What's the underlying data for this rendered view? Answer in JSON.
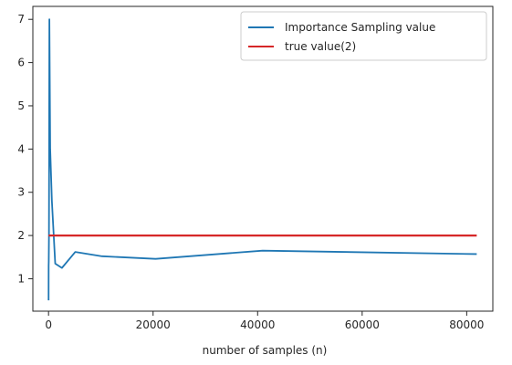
{
  "chart_data": {
    "type": "line",
    "title": "",
    "xlabel": "number of samples (n)",
    "ylabel": "",
    "xlim": [
      -3000,
      85000
    ],
    "ylim": [
      0.25,
      7.3
    ],
    "xticks": [
      0,
      20000,
      40000,
      60000,
      80000
    ],
    "xtick_labels": [
      "0",
      "20000",
      "40000",
      "60000",
      "80000"
    ],
    "yticks": [
      1,
      2,
      3,
      4,
      5,
      6,
      7
    ],
    "ytick_labels": [
      "1",
      "2",
      "3",
      "4",
      "5",
      "6",
      "7"
    ],
    "grid": false,
    "legend_position": "top-right",
    "series": [
      {
        "name": "Importance Sampling value",
        "color": "#1f77b4",
        "x": [
          10,
          20,
          40,
          80,
          160,
          320,
          640,
          1280,
          2560,
          5120,
          10240,
          20480,
          40960,
          81920
        ],
        "y": [
          0.5,
          1.3,
          1.4,
          2.0,
          7.0,
          4.0,
          2.8,
          1.35,
          1.25,
          1.62,
          1.52,
          1.46,
          1.65,
          1.57
        ]
      },
      {
        "name": "true value(2)",
        "color": "#d62728",
        "x": [
          10,
          81920
        ],
        "y": [
          2,
          2
        ]
      }
    ]
  }
}
